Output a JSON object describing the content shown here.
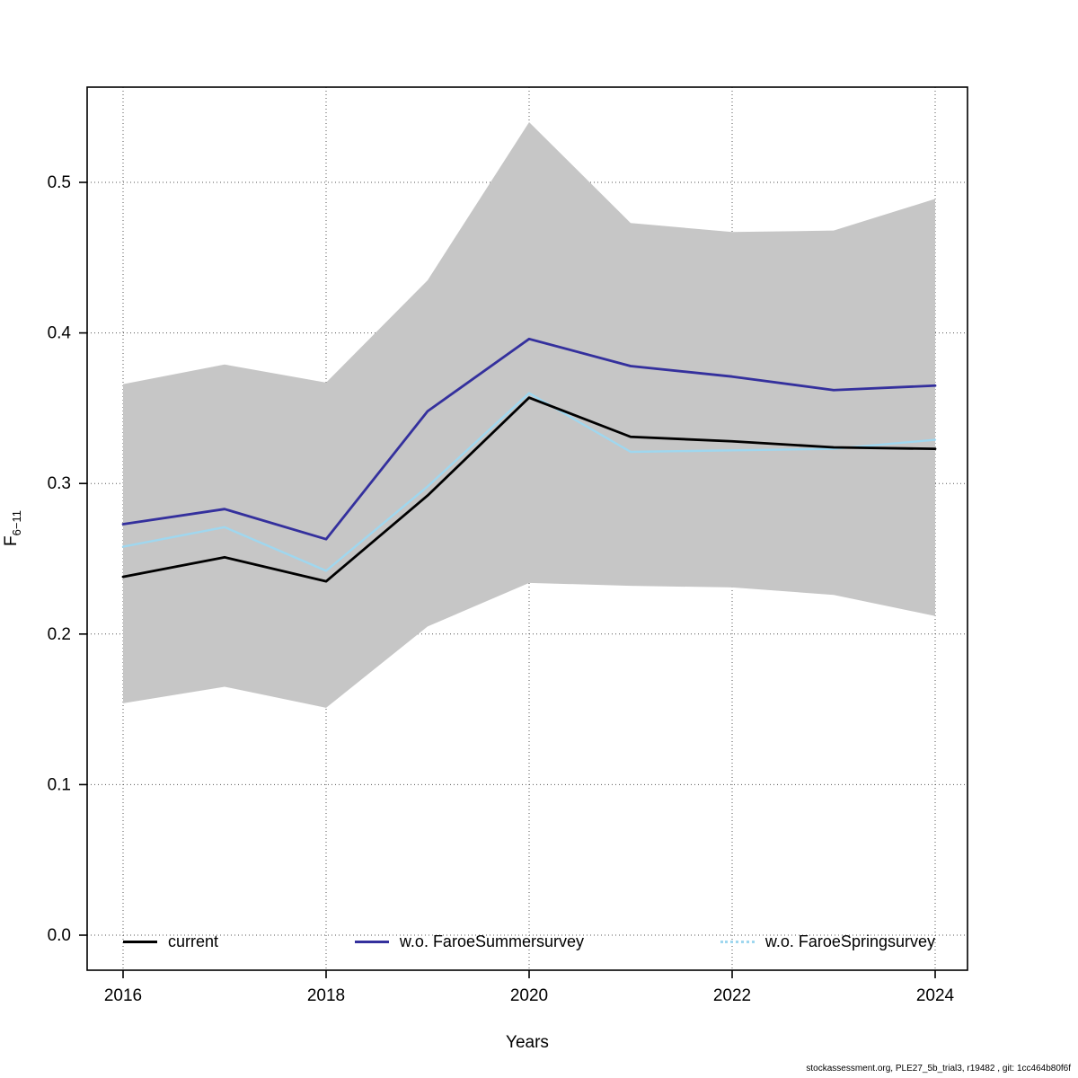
{
  "footer": "stockassessment.org, PLE27_5b_trial3, r19482 , git: 1cc464b80f6f",
  "axis": {
    "x_label": "Years",
    "y_label_base": "F",
    "y_label_sub": "6−11"
  },
  "colors": {
    "band": "#c6c6c6",
    "current": "#000000",
    "summer": "#34309d",
    "spring": "#9fd7ef",
    "grid": "#555555",
    "box": "#000000"
  },
  "chart_data": {
    "type": "line",
    "title": "",
    "xlabel": "Years",
    "ylabel": "F6-11",
    "x": [
      2016,
      2017,
      2018,
      2019,
      2020,
      2021,
      2022,
      2023,
      2024
    ],
    "xticks": [
      2016,
      2018,
      2020,
      2022,
      2024
    ],
    "yticks": [
      0.0,
      0.1,
      0.2,
      0.3,
      0.4,
      0.5
    ],
    "ylim": [
      0.0,
      0.56
    ],
    "grid": true,
    "legend_position": "bottom-inside",
    "series": [
      {
        "name": "current",
        "color_key": "current",
        "style": "solid",
        "values": [
          0.238,
          0.251,
          0.235,
          0.292,
          0.357,
          0.331,
          0.328,
          0.324,
          0.323
        ]
      },
      {
        "name": "w.o. FaroeSummersurvey",
        "color_key": "summer",
        "style": "solid",
        "values": [
          0.273,
          0.283,
          0.263,
          0.348,
          0.396,
          0.378,
          0.371,
          0.362,
          0.365
        ]
      },
      {
        "name": "w.o. FaroeSpringsurvey",
        "color_key": "spring",
        "style": "dotted",
        "values": [
          0.258,
          0.271,
          0.242,
          0.298,
          0.36,
          0.321,
          0.322,
          0.323,
          0.329
        ]
      }
    ],
    "band": {
      "series": "current",
      "color_key": "band",
      "upper": [
        0.366,
        0.379,
        0.367,
        0.435,
        0.54,
        0.473,
        0.467,
        0.468,
        0.489
      ],
      "lower": [
        0.154,
        0.165,
        0.151,
        0.205,
        0.234,
        0.232,
        0.231,
        0.226,
        0.212
      ]
    }
  }
}
